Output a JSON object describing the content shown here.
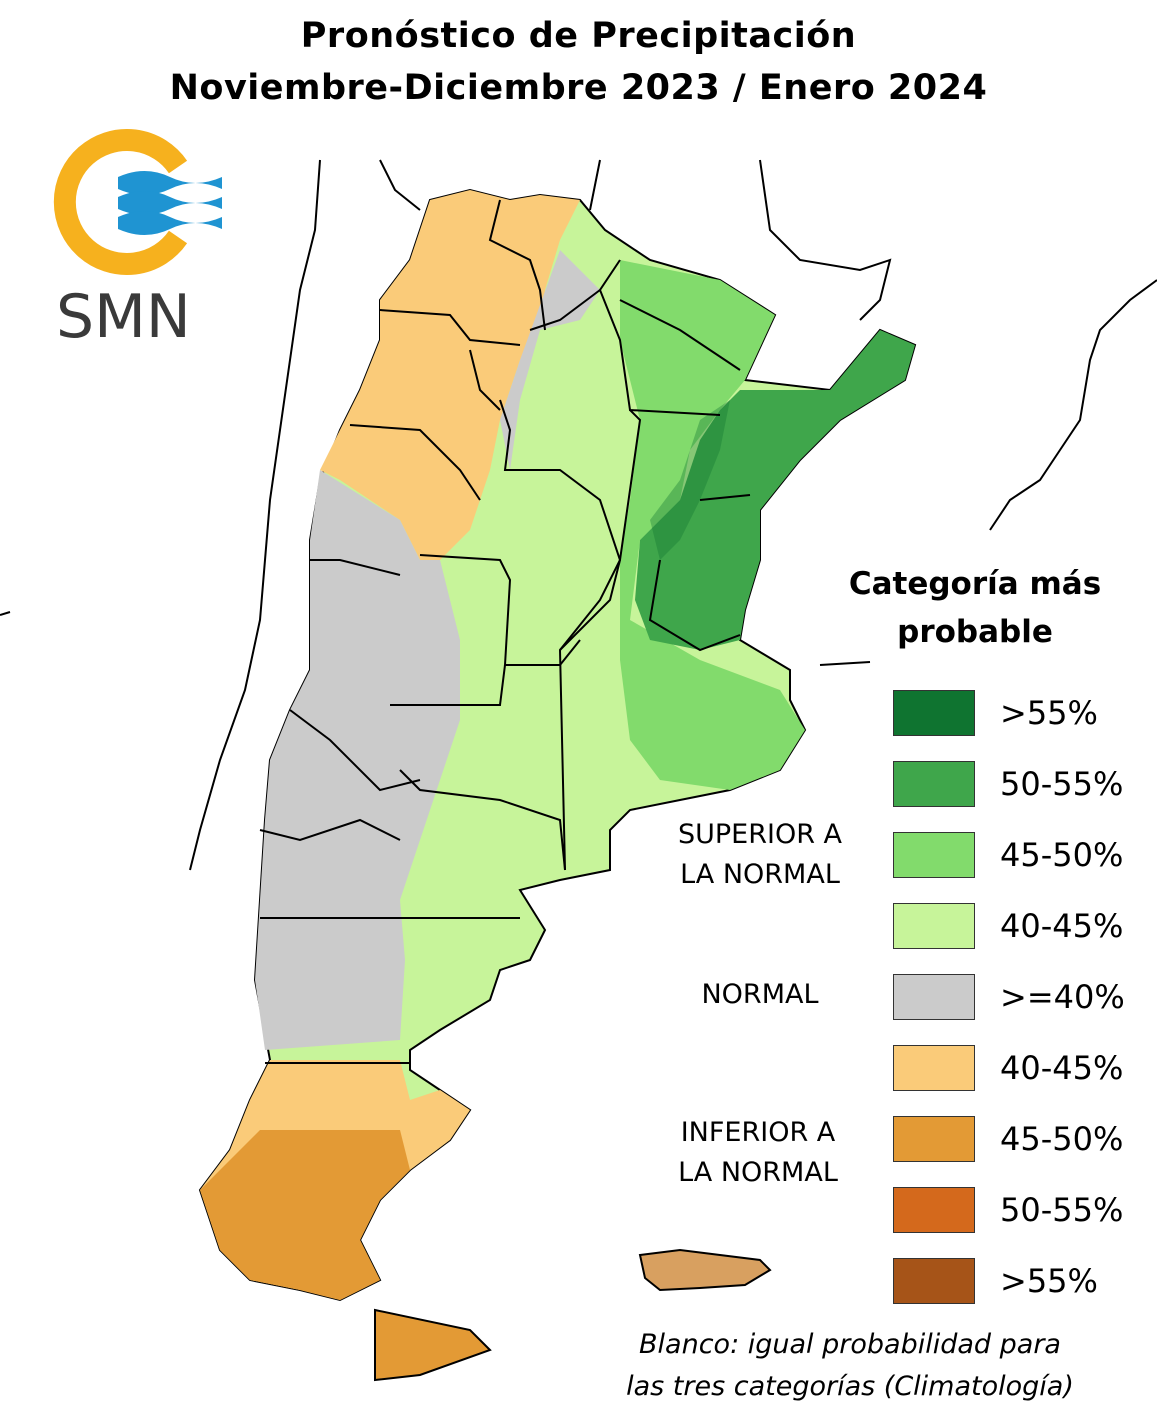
{
  "title": {
    "line1": "Pronóstico de Precipitación",
    "line2": "Noviembre-Diciembre 2023 / Enero 2024"
  },
  "logo": {
    "text": "SMN",
    "icon": "smn-logo-icon",
    "colors": {
      "ring": "#F6B11E",
      "waves": "#1F94D2",
      "text": "#3a3a3a"
    }
  },
  "legend": {
    "title_line1": "Categoría más",
    "title_line2": "probable",
    "groups": {
      "above": [
        "SUPERIOR A",
        "LA NORMAL"
      ],
      "normal": [
        "NORMAL"
      ],
      "below": [
        "INFERIOR A",
        "LA NORMAL"
      ]
    },
    "items": [
      {
        "label": ">55%",
        "color": "#0F7430"
      },
      {
        "label": "50-55%",
        "color": "#3FA64B"
      },
      {
        "label": "45-50%",
        "color": "#82DB6C"
      },
      {
        "label": "40-45%",
        "color": "#C7F49A"
      },
      {
        "label": ">=40%",
        "color": "#CBCBCB"
      },
      {
        "label": "40-45%",
        "color": "#FACB79"
      },
      {
        "label": "45-50%",
        "color": "#E39A35"
      },
      {
        "label": "50-55%",
        "color": "#D4691C"
      },
      {
        "label": ">55%",
        "color": "#A65418"
      }
    ]
  },
  "footnote": {
    "line1": "Blanco: igual probabilidad para",
    "line2": "las tres categorías (Climatología)"
  }
}
